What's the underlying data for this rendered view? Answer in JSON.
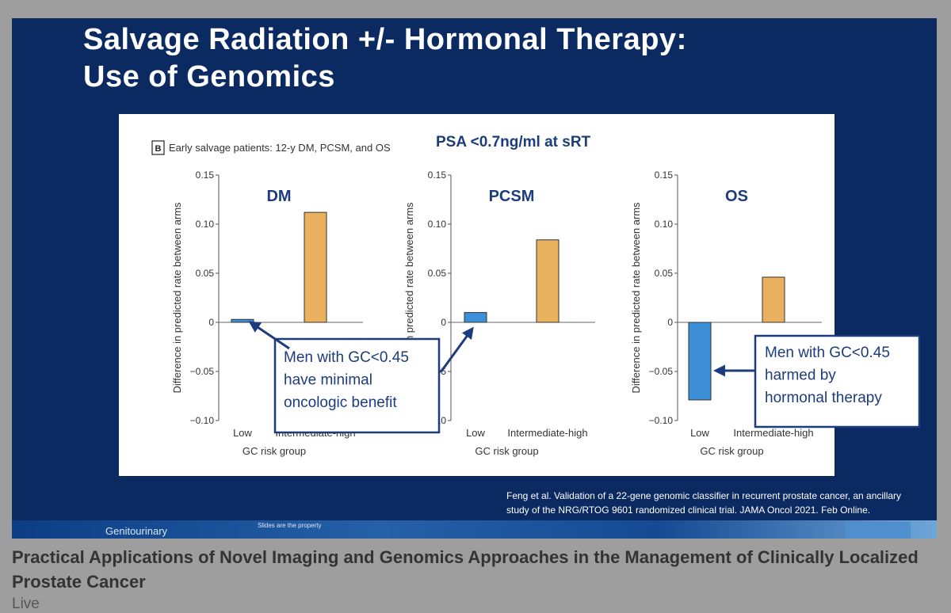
{
  "slide": {
    "title_lines": [
      "Salvage Radiation +/- Hormonal Therapy:",
      "Use of Genomics"
    ],
    "citation_lines": [
      "Feng et al.  Validation of a 22-gene genomic classifier in recurrent prostate cancer, an ancillary",
      "study of the NRG/RTOG 9601 randomized clinical trial.  JAMA Oncol 2021. Feb Online."
    ],
    "footer_left": "Genitourinary",
    "footer_mid": "Slides are the property"
  },
  "video": {
    "title": "Practical Applications of Novel Imaging and Genomics Approaches in the Management of Clinically Localized Prostate Cancer",
    "status": "Live"
  },
  "colors": {
    "low_bar": "#3d8fd8",
    "high_bar": "#e9b15e",
    "callout": "#1c3c7c",
    "slide_bg": "#0b2a62"
  },
  "chart_data": {
    "type": "bar",
    "panel_label": "B",
    "figure_caption": "Early salvage patients: 12-y DM, PCSM, and OS",
    "headline": "PSA <0.7ng/ml at sRT",
    "ylabel": "Difference in predicted rate between arms",
    "xlabel": "GC risk group",
    "categories": [
      "Low",
      "Intermediate-high"
    ],
    "ylim": [
      -0.1,
      0.15
    ],
    "yticks": [
      0.15,
      0.1,
      0.05,
      0,
      -0.05,
      -0.1
    ],
    "ytick_labels": [
      "0.15",
      "0.10",
      "0.05",
      "0",
      "−0.05",
      "−0.10"
    ],
    "panels": [
      {
        "title": "DM",
        "values": [
          0.003,
          0.112
        ]
      },
      {
        "title": "PCSM",
        "values": [
          0.01,
          0.084
        ]
      },
      {
        "title": "OS",
        "values": [
          -0.079,
          0.046
        ]
      }
    ],
    "callouts": [
      {
        "lines": [
          "Men with GC<0.45",
          "have minimal",
          "oncologic benefit"
        ]
      },
      {
        "lines": [
          "Men with GC<0.45",
          "harmed by",
          "hormonal therapy"
        ]
      }
    ]
  }
}
